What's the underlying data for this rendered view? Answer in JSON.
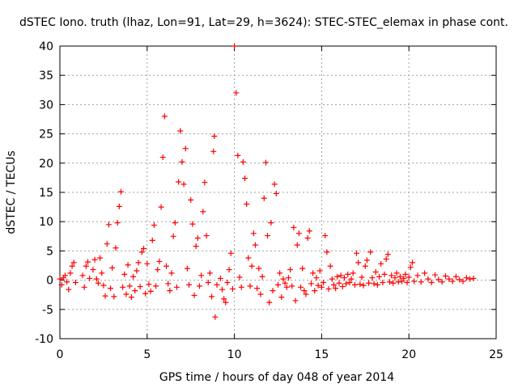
{
  "chart_data": {
    "type": "scatter",
    "title": "dSTEC Iono. truth (lhaz, Lon=91, Lat=29, h=3624): STEC-STEC_elemax in phase cont.",
    "xlabel": "GPS time / hours of day 048 of year 2014",
    "ylabel": "dSTEC  / TECUs",
    "xlim": [
      0,
      25
    ],
    "ylim": [
      -10,
      40
    ],
    "xticks": [
      0,
      5,
      10,
      15,
      20,
      25
    ],
    "yticks": [
      -10,
      -5,
      0,
      5,
      10,
      15,
      20,
      25,
      30,
      35,
      40
    ],
    "grid": true,
    "marker": "+",
    "marker_color": "#ff0000",
    "series": [
      {
        "values": [
          {
            "x": 0.0,
            "y": 0.2
          },
          {
            "x": 0.1,
            "y": -0.8
          },
          {
            "x": 0.2,
            "y": 0.4
          },
          {
            "x": 0.3,
            "y": 0.8
          },
          {
            "x": 0.4,
            "y": -0.3
          },
          {
            "x": 0.5,
            "y": -1.6
          },
          {
            "x": 0.6,
            "y": 1.2
          },
          {
            "x": 0.7,
            "y": 2.4
          },
          {
            "x": 0.8,
            "y": 3.0
          },
          {
            "x": 0.9,
            "y": -0.4
          },
          {
            "x": 1.3,
            "y": 0.8
          },
          {
            "x": 1.4,
            "y": -1.2
          },
          {
            "x": 1.5,
            "y": 2.4
          },
          {
            "x": 1.6,
            "y": 3.1
          },
          {
            "x": 1.7,
            "y": 0.3
          },
          {
            "x": 1.9,
            "y": 1.8
          },
          {
            "x": 2.0,
            "y": 3.5
          },
          {
            "x": 2.1,
            "y": 0.2
          },
          {
            "x": 2.2,
            "y": -0.5
          },
          {
            "x": 2.3,
            "y": 3.8
          },
          {
            "x": 2.4,
            "y": 1.2
          },
          {
            "x": 2.5,
            "y": -0.9
          },
          {
            "x": 2.6,
            "y": -2.7
          },
          {
            "x": 2.7,
            "y": 6.2
          },
          {
            "x": 2.8,
            "y": 9.5
          },
          {
            "x": 2.9,
            "y": -1.4
          },
          {
            "x": 3.0,
            "y": 2.1
          },
          {
            "x": 3.1,
            "y": -2.8
          },
          {
            "x": 3.2,
            "y": 5.5
          },
          {
            "x": 3.3,
            "y": 9.8
          },
          {
            "x": 3.4,
            "y": 12.6
          },
          {
            "x": 3.5,
            "y": 15.1
          },
          {
            "x": 3.6,
            "y": -1.2
          },
          {
            "x": 3.7,
            "y": 1.0
          },
          {
            "x": 3.8,
            "y": -2.4
          },
          {
            "x": 3.9,
            "y": 2.6
          },
          {
            "x": 4.0,
            "y": -1.0
          },
          {
            "x": 4.1,
            "y": -2.9
          },
          {
            "x": 4.2,
            "y": 0.6
          },
          {
            "x": 4.3,
            "y": -1.8
          },
          {
            "x": 4.4,
            "y": 1.6
          },
          {
            "x": 4.5,
            "y": 3.0
          },
          {
            "x": 4.6,
            "y": -1.1
          },
          {
            "x": 4.7,
            "y": 4.8
          },
          {
            "x": 4.8,
            "y": 5.4
          },
          {
            "x": 4.9,
            "y": -2.3
          },
          {
            "x": 5.0,
            "y": 2.8
          },
          {
            "x": 5.1,
            "y": -0.7
          },
          {
            "x": 5.2,
            "y": -1.9
          },
          {
            "x": 5.3,
            "y": 6.8
          },
          {
            "x": 5.4,
            "y": 9.4
          },
          {
            "x": 5.5,
            "y": -1.0
          },
          {
            "x": 5.6,
            "y": 1.8
          },
          {
            "x": 5.7,
            "y": 3.2
          },
          {
            "x": 5.8,
            "y": 12.5
          },
          {
            "x": 5.9,
            "y": 21.0
          },
          {
            "x": 6.0,
            "y": 28.0
          },
          {
            "x": 6.1,
            "y": 2.4
          },
          {
            "x": 6.2,
            "y": -0.6
          },
          {
            "x": 6.3,
            "y": -1.8
          },
          {
            "x": 6.4,
            "y": 1.2
          },
          {
            "x": 6.5,
            "y": 7.5
          },
          {
            "x": 6.6,
            "y": 9.8
          },
          {
            "x": 6.7,
            "y": -1.2
          },
          {
            "x": 6.8,
            "y": 16.8
          },
          {
            "x": 6.9,
            "y": 25.5
          },
          {
            "x": 7.0,
            "y": 20.2
          },
          {
            "x": 7.1,
            "y": 16.4
          },
          {
            "x": 7.2,
            "y": 22.5
          },
          {
            "x": 7.3,
            "y": 2.0
          },
          {
            "x": 7.4,
            "y": -0.8
          },
          {
            "x": 7.5,
            "y": 13.7
          },
          {
            "x": 7.6,
            "y": 9.6
          },
          {
            "x": 7.7,
            "y": -2.6
          },
          {
            "x": 7.8,
            "y": 5.8
          },
          {
            "x": 7.9,
            "y": 7.2
          },
          {
            "x": 8.0,
            "y": -1.0
          },
          {
            "x": 8.1,
            "y": 0.8
          },
          {
            "x": 8.2,
            "y": 11.7
          },
          {
            "x": 8.3,
            "y": 16.7
          },
          {
            "x": 8.4,
            "y": 7.6
          },
          {
            "x": 8.5,
            "y": -0.4
          },
          {
            "x": 8.6,
            "y": 1.2
          },
          {
            "x": 8.7,
            "y": -2.8
          },
          {
            "x": 8.8,
            "y": 22.0
          },
          {
            "x": 8.85,
            "y": 24.6
          },
          {
            "x": 8.9,
            "y": -6.3
          },
          {
            "x": 9.0,
            "y": -0.8
          },
          {
            "x": 9.2,
            "y": 0.3
          },
          {
            "x": 9.3,
            "y": -1.6
          },
          {
            "x": 9.4,
            "y": -3.2
          },
          {
            "x": 9.5,
            "y": -3.8
          },
          {
            "x": 9.6,
            "y": -0.4
          },
          {
            "x": 9.7,
            "y": 1.8
          },
          {
            "x": 9.8,
            "y": 4.6
          },
          {
            "x": 9.9,
            "y": -1.5
          },
          {
            "x": 10.0,
            "y": 40.0
          },
          {
            "x": 10.1,
            "y": 32.0
          },
          {
            "x": 10.2,
            "y": 21.3
          },
          {
            "x": 10.3,
            "y": 0.5
          },
          {
            "x": 10.4,
            "y": -1.2
          },
          {
            "x": 10.5,
            "y": 20.2
          },
          {
            "x": 10.6,
            "y": 17.4
          },
          {
            "x": 10.7,
            "y": 13.0
          },
          {
            "x": 10.8,
            "y": 3.8
          },
          {
            "x": 10.9,
            "y": -1.0
          },
          {
            "x": 11.0,
            "y": 2.4
          },
          {
            "x": 11.1,
            "y": 8.0
          },
          {
            "x": 11.2,
            "y": 6.0
          },
          {
            "x": 11.3,
            "y": -1.4
          },
          {
            "x": 11.4,
            "y": 2.0
          },
          {
            "x": 11.5,
            "y": -2.4
          },
          {
            "x": 11.6,
            "y": 0.6
          },
          {
            "x": 11.7,
            "y": 14.0
          },
          {
            "x": 11.8,
            "y": 20.1
          },
          {
            "x": 11.9,
            "y": 7.6
          },
          {
            "x": 12.0,
            "y": -3.8
          },
          {
            "x": 12.1,
            "y": 9.8
          },
          {
            "x": 12.2,
            "y": -1.8
          },
          {
            "x": 12.3,
            "y": 16.4
          },
          {
            "x": 12.4,
            "y": 14.8
          },
          {
            "x": 12.5,
            "y": -0.8
          },
          {
            "x": 12.6,
            "y": 1.2
          },
          {
            "x": 12.7,
            "y": -2.9
          },
          {
            "x": 12.8,
            "y": 0.2
          },
          {
            "x": 12.9,
            "y": -0.5
          },
          {
            "x": 13.0,
            "y": -1.2
          },
          {
            "x": 13.1,
            "y": 0.4
          },
          {
            "x": 13.2,
            "y": 1.8
          },
          {
            "x": 13.3,
            "y": -1.0
          },
          {
            "x": 13.4,
            "y": 9.0
          },
          {
            "x": 13.5,
            "y": -3.5
          },
          {
            "x": 13.6,
            "y": 6.0
          },
          {
            "x": 13.7,
            "y": 8.0
          },
          {
            "x": 13.8,
            "y": -1.2
          },
          {
            "x": 13.9,
            "y": 2.0
          },
          {
            "x": 14.0,
            "y": -1.8
          },
          {
            "x": 14.1,
            "y": -2.4
          },
          {
            "x": 14.2,
            "y": 7.2
          },
          {
            "x": 14.3,
            "y": 8.4
          },
          {
            "x": 14.4,
            "y": -0.6
          },
          {
            "x": 14.5,
            "y": 1.2
          },
          {
            "x": 14.6,
            "y": -1.8
          },
          {
            "x": 14.7,
            "y": 0.4
          },
          {
            "x": 14.8,
            "y": -0.9
          },
          {
            "x": 14.9,
            "y": 1.6
          },
          {
            "x": 15.0,
            "y": -1.2
          },
          {
            "x": 15.1,
            "y": -0.4
          },
          {
            "x": 15.2,
            "y": 7.6
          },
          {
            "x": 15.3,
            "y": 4.8
          },
          {
            "x": 15.4,
            "y": -1.5
          },
          {
            "x": 15.5,
            "y": 2.4
          },
          {
            "x": 15.6,
            "y": 0.2
          },
          {
            "x": 15.7,
            "y": -0.8
          },
          {
            "x": 15.8,
            "y": -1.4
          },
          {
            "x": 15.9,
            "y": 0.6
          },
          {
            "x": 16.0,
            "y": -0.5
          },
          {
            "x": 16.1,
            "y": 0.8
          },
          {
            "x": 16.2,
            "y": -1.1
          },
          {
            "x": 16.3,
            "y": 0.4
          },
          {
            "x": 16.4,
            "y": -0.6
          },
          {
            "x": 16.5,
            "y": 1.0
          },
          {
            "x": 16.6,
            "y": -0.4
          },
          {
            "x": 16.7,
            "y": 0.2
          },
          {
            "x": 16.8,
            "y": 1.2
          },
          {
            "x": 16.9,
            "y": -0.8
          },
          {
            "x": 17.0,
            "y": 4.6
          },
          {
            "x": 17.1,
            "y": 3.0
          },
          {
            "x": 17.2,
            "y": -0.7
          },
          {
            "x": 17.3,
            "y": 0.5
          },
          {
            "x": 17.4,
            "y": -0.9
          },
          {
            "x": 17.5,
            "y": 2.4
          },
          {
            "x": 17.6,
            "y": 3.4
          },
          {
            "x": 17.7,
            "y": -0.5
          },
          {
            "x": 17.8,
            "y": 4.8
          },
          {
            "x": 17.9,
            "y": 0.4
          },
          {
            "x": 18.0,
            "y": -0.6
          },
          {
            "x": 18.1,
            "y": 1.4
          },
          {
            "x": 18.2,
            "y": -0.8
          },
          {
            "x": 18.3,
            "y": 0.6
          },
          {
            "x": 18.4,
            "y": 2.8
          },
          {
            "x": 18.5,
            "y": -0.4
          },
          {
            "x": 18.6,
            "y": 1.0
          },
          {
            "x": 18.7,
            "y": 3.6
          },
          {
            "x": 18.8,
            "y": 4.4
          },
          {
            "x": 18.9,
            "y": -0.3
          },
          {
            "x": 19.0,
            "y": 0.8
          },
          {
            "x": 19.1,
            "y": -0.5
          },
          {
            "x": 19.2,
            "y": 0.4
          },
          {
            "x": 19.3,
            "y": 1.2
          },
          {
            "x": 19.4,
            "y": -0.3
          },
          {
            "x": 19.5,
            "y": 0.6
          },
          {
            "x": 19.6,
            "y": -0.2
          },
          {
            "x": 19.7,
            "y": 0.3
          },
          {
            "x": 19.8,
            "y": 1.0
          },
          {
            "x": 19.9,
            "y": -0.4
          },
          {
            "x": 20.0,
            "y": 0.5
          },
          {
            "x": 20.1,
            "y": 2.2
          },
          {
            "x": 20.2,
            "y": 3.0
          },
          {
            "x": 20.3,
            "y": -0.2
          },
          {
            "x": 20.5,
            "y": 0.8
          },
          {
            "x": 20.7,
            "y": -0.3
          },
          {
            "x": 20.9,
            "y": 1.2
          },
          {
            "x": 21.1,
            "y": 0.2
          },
          {
            "x": 21.3,
            "y": -0.4
          },
          {
            "x": 21.5,
            "y": 0.9
          },
          {
            "x": 21.7,
            "y": 0.1
          },
          {
            "x": 21.9,
            "y": -0.3
          },
          {
            "x": 22.1,
            "y": 0.7
          },
          {
            "x": 22.3,
            "y": 0.2
          },
          {
            "x": 22.5,
            "y": -0.2
          },
          {
            "x": 22.7,
            "y": 0.6
          },
          {
            "x": 22.9,
            "y": 0.1
          },
          {
            "x": 23.1,
            "y": -0.2
          },
          {
            "x": 23.3,
            "y": 0.4
          },
          {
            "x": 23.5,
            "y": 0.2
          },
          {
            "x": 23.7,
            "y": 0.3
          }
        ]
      }
    ]
  }
}
